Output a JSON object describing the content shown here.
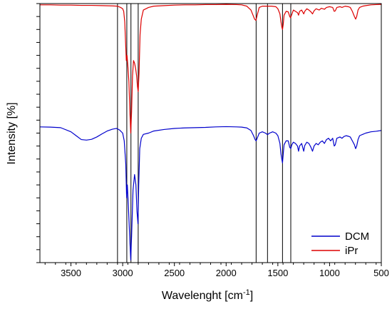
{
  "chart_data": {
    "type": "line",
    "xlabel": "Wavelenght [cm",
    "xlabel_sup": "-1",
    "xlabel_end": "]",
    "ylabel": "Intensity [%]",
    "xlim": [
      3800,
      500
    ],
    "x_reversed": true,
    "ylim": [
      0,
      1
    ],
    "x_ticks": [
      3500,
      3000,
      2500,
      2000,
      1500,
      1000,
      500
    ],
    "y_tick_count": 20,
    "y_tick_labels_shown": false,
    "grid": false,
    "legend_position": "bottom-right",
    "reference_lines_x": [
      3050,
      2960,
      2920,
      2850,
      1710,
      1600,
      1455,
      1375
    ],
    "series": [
      {
        "name": "DCM",
        "color": "#0000cc",
        "points": [
          [
            3800,
            0.524
          ],
          [
            3700,
            0.523
          ],
          [
            3600,
            0.521
          ],
          [
            3500,
            0.505
          ],
          [
            3450,
            0.49
          ],
          [
            3400,
            0.475
          ],
          [
            3350,
            0.473
          ],
          [
            3300,
            0.476
          ],
          [
            3250,
            0.485
          ],
          [
            3200,
            0.497
          ],
          [
            3150,
            0.508
          ],
          [
            3100,
            0.515
          ],
          [
            3060,
            0.518
          ],
          [
            3030,
            0.512
          ],
          [
            3000,
            0.5
          ],
          [
            2985,
            0.47
          ],
          [
            2970,
            0.38
          ],
          [
            2962,
            0.25
          ],
          [
            2955,
            0.3
          ],
          [
            2945,
            0.22
          ],
          [
            2930,
            0.08
          ],
          [
            2922,
            0.01
          ],
          [
            2914,
            0.1
          ],
          [
            2900,
            0.28
          ],
          [
            2885,
            0.34
          ],
          [
            2872,
            0.3
          ],
          [
            2862,
            0.2
          ],
          [
            2852,
            0.15
          ],
          [
            2845,
            0.3
          ],
          [
            2835,
            0.44
          ],
          [
            2820,
            0.48
          ],
          [
            2800,
            0.495
          ],
          [
            2750,
            0.5
          ],
          [
            2700,
            0.508
          ],
          [
            2600,
            0.514
          ],
          [
            2500,
            0.518
          ],
          [
            2400,
            0.52
          ],
          [
            2300,
            0.521
          ],
          [
            2200,
            0.522
          ],
          [
            2100,
            0.524
          ],
          [
            2000,
            0.525
          ],
          [
            1900,
            0.524
          ],
          [
            1850,
            0.523
          ],
          [
            1800,
            0.52
          ],
          [
            1760,
            0.51
          ],
          [
            1735,
            0.49
          ],
          [
            1720,
            0.475
          ],
          [
            1710,
            0.47
          ],
          [
            1700,
            0.48
          ],
          [
            1680,
            0.5
          ],
          [
            1650,
            0.505
          ],
          [
            1620,
            0.5
          ],
          [
            1600,
            0.494
          ],
          [
            1580,
            0.5
          ],
          [
            1550,
            0.505
          ],
          [
            1520,
            0.5
          ],
          [
            1500,
            0.49
          ],
          [
            1480,
            0.46
          ],
          [
            1470,
            0.42
          ],
          [
            1462,
            0.4
          ],
          [
            1455,
            0.385
          ],
          [
            1448,
            0.42
          ],
          [
            1440,
            0.455
          ],
          [
            1420,
            0.47
          ],
          [
            1400,
            0.47
          ],
          [
            1385,
            0.445
          ],
          [
            1375,
            0.44
          ],
          [
            1365,
            0.455
          ],
          [
            1350,
            0.465
          ],
          [
            1330,
            0.46
          ],
          [
            1310,
            0.45
          ],
          [
            1300,
            0.43
          ],
          [
            1290,
            0.45
          ],
          [
            1270,
            0.46
          ],
          [
            1250,
            0.43
          ],
          [
            1240,
            0.452
          ],
          [
            1220,
            0.465
          ],
          [
            1200,
            0.46
          ],
          [
            1180,
            0.445
          ],
          [
            1165,
            0.43
          ],
          [
            1150,
            0.45
          ],
          [
            1130,
            0.46
          ],
          [
            1110,
            0.455
          ],
          [
            1090,
            0.465
          ],
          [
            1070,
            0.47
          ],
          [
            1050,
            0.46
          ],
          [
            1030,
            0.475
          ],
          [
            1010,
            0.48
          ],
          [
            990,
            0.47
          ],
          [
            970,
            0.48
          ],
          [
            955,
            0.45
          ],
          [
            945,
            0.455
          ],
          [
            930,
            0.48
          ],
          [
            900,
            0.485
          ],
          [
            880,
            0.48
          ],
          [
            860,
            0.487
          ],
          [
            840,
            0.49
          ],
          [
            820,
            0.488
          ],
          [
            800,
            0.485
          ],
          [
            780,
            0.47
          ],
          [
            760,
            0.455
          ],
          [
            748,
            0.44
          ],
          [
            738,
            0.45
          ],
          [
            725,
            0.475
          ],
          [
            710,
            0.49
          ],
          [
            680,
            0.495
          ],
          [
            650,
            0.5
          ],
          [
            600,
            0.505
          ],
          [
            550,
            0.507
          ],
          [
            500,
            0.51
          ]
        ]
      },
      {
        "name": "iPr",
        "color": "#dd0000",
        "points": [
          [
            3800,
            0.995
          ],
          [
            3700,
            0.995
          ],
          [
            3600,
            0.994
          ],
          [
            3500,
            0.994
          ],
          [
            3400,
            0.993
          ],
          [
            3300,
            0.993
          ],
          [
            3200,
            0.992
          ],
          [
            3100,
            0.991
          ],
          [
            3050,
            0.99
          ],
          [
            3020,
            0.985
          ],
          [
            3000,
            0.98
          ],
          [
            2990,
            0.97
          ],
          [
            2980,
            0.93
          ],
          [
            2972,
            0.85
          ],
          [
            2965,
            0.78
          ],
          [
            2958,
            0.8
          ],
          [
            2950,
            0.76
          ],
          [
            2940,
            0.7
          ],
          [
            2930,
            0.58
          ],
          [
            2922,
            0.5
          ],
          [
            2914,
            0.58
          ],
          [
            2905,
            0.72
          ],
          [
            2895,
            0.78
          ],
          [
            2885,
            0.77
          ],
          [
            2875,
            0.75
          ],
          [
            2865,
            0.72
          ],
          [
            2857,
            0.68
          ],
          [
            2850,
            0.66
          ],
          [
            2842,
            0.73
          ],
          [
            2832,
            0.88
          ],
          [
            2820,
            0.94
          ],
          [
            2800,
            0.975
          ],
          [
            2750,
            0.985
          ],
          [
            2700,
            0.99
          ],
          [
            2600,
            0.992
          ],
          [
            2500,
            0.994
          ],
          [
            2400,
            0.995
          ],
          [
            2300,
            0.995
          ],
          [
            2200,
            0.996
          ],
          [
            2100,
            0.996
          ],
          [
            2000,
            0.997
          ],
          [
            1900,
            0.996
          ],
          [
            1850,
            0.995
          ],
          [
            1800,
            0.99
          ],
          [
            1760,
            0.975
          ],
          [
            1740,
            0.955
          ],
          [
            1725,
            0.94
          ],
          [
            1712,
            0.935
          ],
          [
            1700,
            0.955
          ],
          [
            1680,
            0.985
          ],
          [
            1650,
            0.99
          ],
          [
            1600,
            0.99
          ],
          [
            1560,
            0.99
          ],
          [
            1520,
            0.988
          ],
          [
            1500,
            0.98
          ],
          [
            1480,
            0.96
          ],
          [
            1470,
            0.93
          ],
          [
            1462,
            0.91
          ],
          [
            1455,
            0.9
          ],
          [
            1448,
            0.92
          ],
          [
            1440,
            0.955
          ],
          [
            1420,
            0.97
          ],
          [
            1400,
            0.968
          ],
          [
            1385,
            0.95
          ],
          [
            1377,
            0.945
          ],
          [
            1368,
            0.955
          ],
          [
            1350,
            0.975
          ],
          [
            1330,
            0.97
          ],
          [
            1310,
            0.965
          ],
          [
            1300,
            0.955
          ],
          [
            1290,
            0.97
          ],
          [
            1270,
            0.975
          ],
          [
            1250,
            0.96
          ],
          [
            1240,
            0.97
          ],
          [
            1220,
            0.98
          ],
          [
            1200,
            0.975
          ],
          [
            1180,
            0.968
          ],
          [
            1165,
            0.96
          ],
          [
            1150,
            0.972
          ],
          [
            1130,
            0.98
          ],
          [
            1100,
            0.975
          ],
          [
            1080,
            0.982
          ],
          [
            1050,
            0.978
          ],
          [
            1030,
            0.985
          ],
          [
            1000,
            0.988
          ],
          [
            970,
            0.985
          ],
          [
            955,
            0.97
          ],
          [
            945,
            0.972
          ],
          [
            930,
            0.985
          ],
          [
            900,
            0.988
          ],
          [
            880,
            0.985
          ],
          [
            850,
            0.99
          ],
          [
            820,
            0.988
          ],
          [
            800,
            0.985
          ],
          [
            780,
            0.97
          ],
          [
            760,
            0.95
          ],
          [
            748,
            0.94
          ],
          [
            738,
            0.95
          ],
          [
            725,
            0.975
          ],
          [
            710,
            0.985
          ],
          [
            680,
            0.99
          ],
          [
            650,
            0.992
          ],
          [
            600,
            0.995
          ],
          [
            550,
            0.996
          ],
          [
            500,
            0.997
          ]
        ]
      }
    ]
  }
}
